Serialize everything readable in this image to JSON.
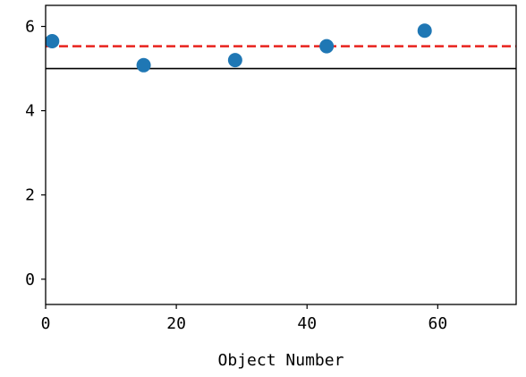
{
  "chart_data": {
    "type": "scatter",
    "title": "",
    "xlabel": "Object Number",
    "ylabel": "",
    "xlim": [
      0,
      72
    ],
    "ylim": [
      -0.6,
      6.5
    ],
    "xticks": [
      0,
      20,
      40,
      60
    ],
    "yticks": [
      0,
      2,
      4,
      6
    ],
    "grid": false,
    "points": [
      {
        "x": 1,
        "y": 5.65
      },
      {
        "x": 15,
        "y": 5.08
      },
      {
        "x": 29,
        "y": 5.2
      },
      {
        "x": 43,
        "y": 5.53
      },
      {
        "x": 58,
        "y": 5.9
      }
    ],
    "reference_lines": [
      {
        "style": "solid",
        "color": "#000000",
        "y": 5.0
      },
      {
        "style": "dashed",
        "color": "#e8221c",
        "y": 5.53
      }
    ],
    "marker_color": "#1f77b4"
  }
}
